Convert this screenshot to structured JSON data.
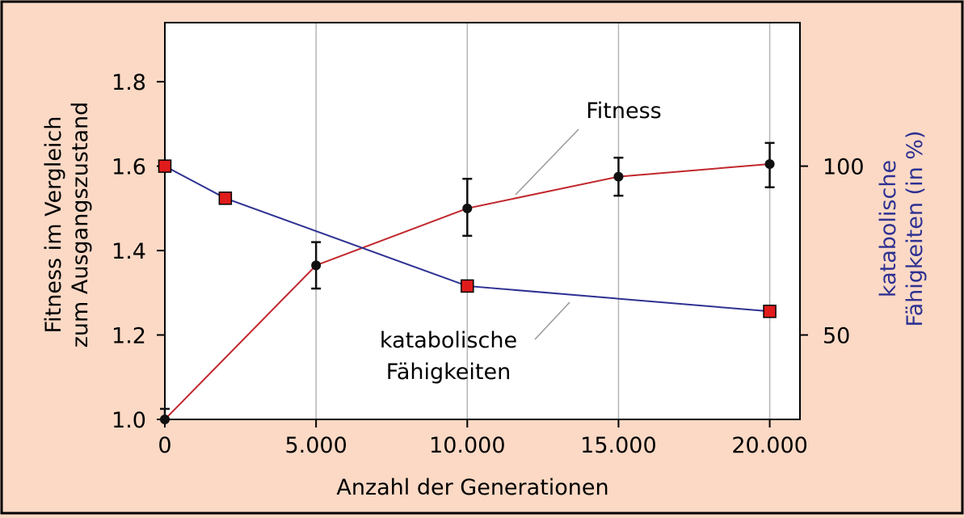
{
  "chart_data": {
    "type": "line",
    "title": "",
    "xlabel": "Anzahl der Generationen",
    "ylabel_left": [
      "Fitness im Vergleich",
      "zum Ausgangszustand"
    ],
    "ylabel_right": [
      "katabolische",
      "Fähigkeiten (in %)"
    ],
    "xlim": [
      0,
      21000
    ],
    "ylim_left": [
      1.0,
      1.94
    ],
    "right_axis_map": {
      "50": 1.2,
      "100": 1.6
    },
    "x_ticks": [
      0,
      5000,
      10000,
      15000,
      20000
    ],
    "x_tick_labels": [
      "0",
      "5.000",
      "10.000",
      "15.000",
      "20.000"
    ],
    "y_ticks_left": [
      1.0,
      1.2,
      1.4,
      1.6,
      1.8
    ],
    "y_tick_labels_left": [
      "1.0",
      "1.2",
      "1.4",
      "1.6",
      "1.8"
    ],
    "y_ticks_right": [
      50,
      100
    ],
    "y_tick_labels_right": [
      "50",
      "100"
    ],
    "grid": "vertical",
    "series": [
      {
        "name": "Fitness",
        "axis": "left",
        "color": "#c1272d",
        "marker": "circle",
        "x": [
          0,
          5000,
          10000,
          15000,
          20000
        ],
        "y": [
          1.0,
          1.365,
          1.5,
          1.575,
          1.605
        ],
        "err_low": [
          1.0,
          1.31,
          1.435,
          1.53,
          1.55
        ],
        "err_high": [
          1.025,
          1.42,
          1.57,
          1.62,
          1.655
        ]
      },
      {
        "name": "katabolische Fähigkeiten",
        "name_lines": [
          "katabolische",
          "Fähigkeiten"
        ],
        "axis": "right",
        "color": "#2e3192",
        "marker": "square",
        "marker_color": "#e01b1b",
        "x": [
          0,
          2000,
          10000,
          20000
        ],
        "y": [
          100,
          90.5,
          64.5,
          57
        ]
      }
    ]
  }
}
